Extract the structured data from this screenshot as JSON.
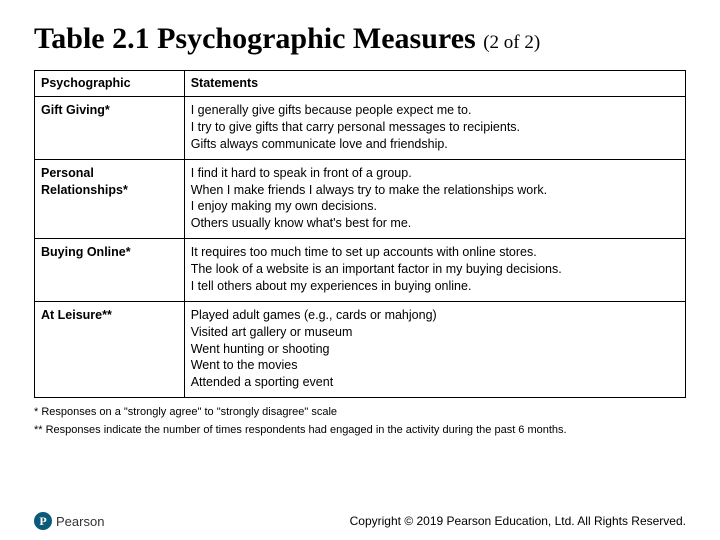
{
  "title_main": "Table 2.1 Psychographic Measures ",
  "title_sub": "(2 of 2)",
  "table": {
    "headers": [
      "Psychographic",
      "Statements"
    ],
    "rows": [
      {
        "label": "Gift Giving*",
        "statements": [
          "I generally give gifts because people expect me to.",
          "I try to give gifts that carry personal messages to recipients.",
          "Gifts always communicate love and friendship."
        ]
      },
      {
        "label": "Personal Relationships*",
        "statements": [
          "I find it hard to speak in front of a group.",
          "When I make friends I always try to make the relationships work.",
          "I enjoy making my own decisions.",
          "Others usually know what's best for me."
        ]
      },
      {
        "label": "Buying Online*",
        "statements": [
          "It requires too much time to set up accounts with online stores.",
          "The look of a website is an important factor in my buying decisions.",
          "I tell others about my experiences in buying online."
        ]
      },
      {
        "label": "At Leisure**",
        "statements": [
          "Played adult games (e.g., cards or mahjong)",
          "Visited art gallery or museum",
          "Went hunting or shooting",
          "Went to the movies",
          "Attended a sporting event"
        ]
      }
    ]
  },
  "footnotes": [
    "* Responses on a \"strongly agree\" to \"strongly disagree\" scale",
    "** Responses indicate the number of times respondents had engaged in the activity during the past 6 months."
  ],
  "logo_letter": "P",
  "logo_text": "Pearson",
  "copyright": "Copyright © 2019 Pearson Education, Ltd. All Rights Reserved."
}
